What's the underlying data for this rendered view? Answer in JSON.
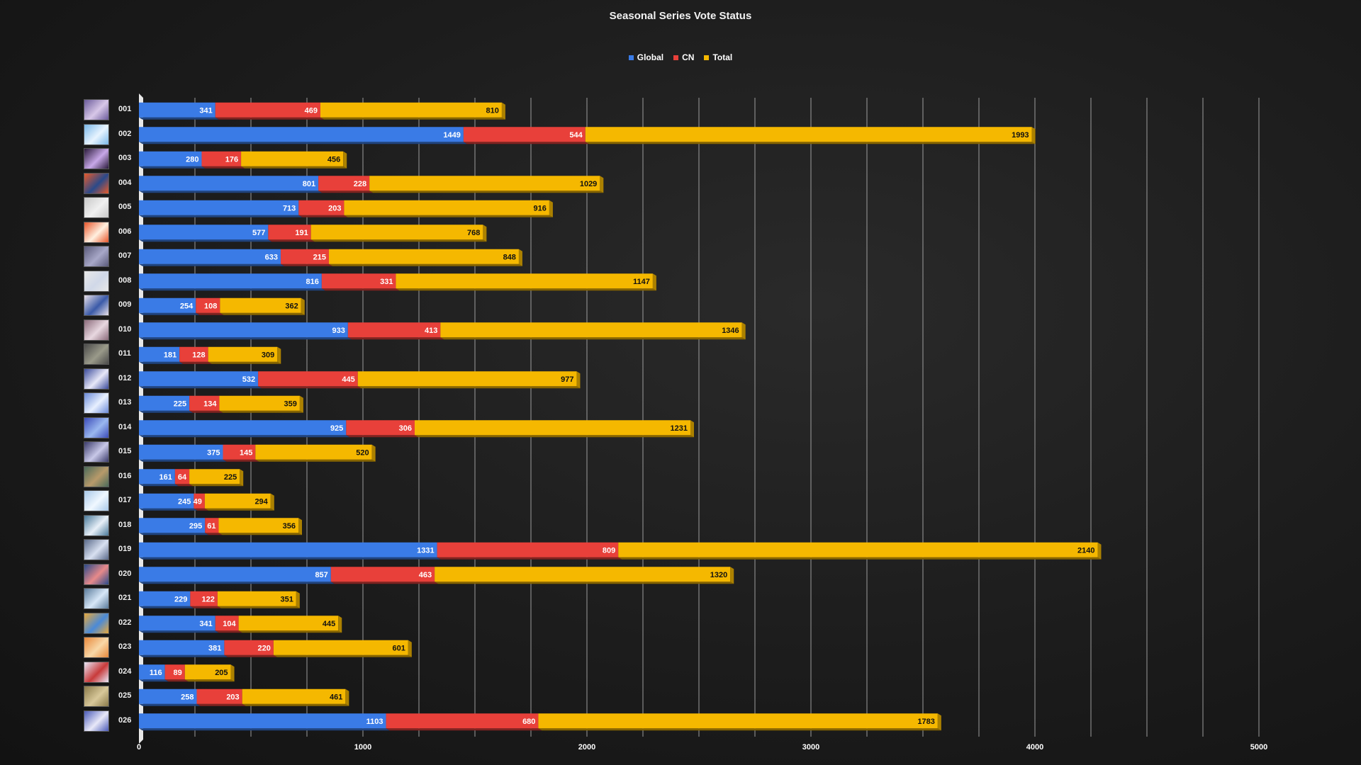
{
  "chart_data": {
    "type": "bar",
    "title": "Seasonal Series Vote Status",
    "categories": [
      "001",
      "002",
      "003",
      "004",
      "005",
      "006",
      "007",
      "008",
      "009",
      "010",
      "011",
      "012",
      "013",
      "014",
      "015",
      "016",
      "017",
      "018",
      "019",
      "020",
      "021",
      "022",
      "023",
      "024",
      "025",
      "026"
    ],
    "series": [
      {
        "name": "Global",
        "color": "#3a7be6",
        "values": [
          341,
          1449,
          280,
          801,
          713,
          577,
          633,
          816,
          254,
          933,
          181,
          532,
          225,
          925,
          375,
          161,
          245,
          295,
          1331,
          857,
          229,
          341,
          381,
          116,
          258,
          1103
        ]
      },
      {
        "name": "CN",
        "color": "#e8403a",
        "values": [
          469,
          544,
          176,
          228,
          203,
          191,
          215,
          331,
          108,
          413,
          128,
          445,
          134,
          306,
          145,
          64,
          49,
          61,
          809,
          463,
          122,
          104,
          220,
          89,
          203,
          680
        ]
      },
      {
        "name": "Total",
        "color": "#f5b800",
        "values": [
          810,
          1993,
          456,
          1029,
          916,
          768,
          848,
          1147,
          362,
          1346,
          309,
          977,
          359,
          1231,
          520,
          225,
          294,
          356,
          2140,
          1320,
          351,
          445,
          601,
          205,
          461,
          1783
        ]
      }
    ],
    "xlim": [
      0,
      5000
    ],
    "xticks": [
      "0",
      "1000",
      "2000",
      "3000",
      "4000",
      "5000"
    ],
    "orientation": "horizontal",
    "stacked": true,
    "legend_position": "top-center",
    "grid": true
  },
  "thumbnails": [
    [
      "#6a5a9a",
      "#d8c8e8"
    ],
    [
      "#7ab8e8",
      "#e8f4ff"
    ],
    [
      "#2a1a3a",
      "#c8a8e8"
    ],
    [
      "#e85a2a",
      "#2a4a8a"
    ],
    [
      "#c8c8c8",
      "#f0f0f0"
    ],
    [
      "#e8562a",
      "#fff0e0"
    ],
    [
      "#5a5a7a",
      "#a8a8c8"
    ],
    [
      "#e8e8e8",
      "#d0d8e8"
    ],
    [
      "#e8e0e8",
      "#3a5aa8"
    ],
    [
      "#8a6a7a",
      "#e8d8e0"
    ],
    [
      "#4a4a4a",
      "#9a9a8a"
    ],
    [
      "#3a4a9a",
      "#e8e8f8"
    ],
    [
      "#6a8ad8",
      "#e8f0ff"
    ],
    [
      "#3a4ab8",
      "#9ab8f0"
    ],
    [
      "#3a3a6a",
      "#c8c8e8"
    ],
    [
      "#4a6a5a",
      "#b89a6a"
    ],
    [
      "#a8c8e8",
      "#f0f8ff"
    ],
    [
      "#4a7a9a",
      "#e8f0f8"
    ],
    [
      "#5a6a8a",
      "#d8e0f0"
    ],
    [
      "#2a4a8a",
      "#e88a8a"
    ],
    [
      "#5a7a9a",
      "#d8e8f8"
    ],
    [
      "#e8a83a",
      "#4a8ad8"
    ],
    [
      "#e8883a",
      "#f8d8a8"
    ],
    [
      "#e8e8f8",
      "#c83a3a"
    ],
    [
      "#8a7a4a",
      "#d8c89a"
    ],
    [
      "#4a5ab8",
      "#e8e8f8"
    ]
  ]
}
